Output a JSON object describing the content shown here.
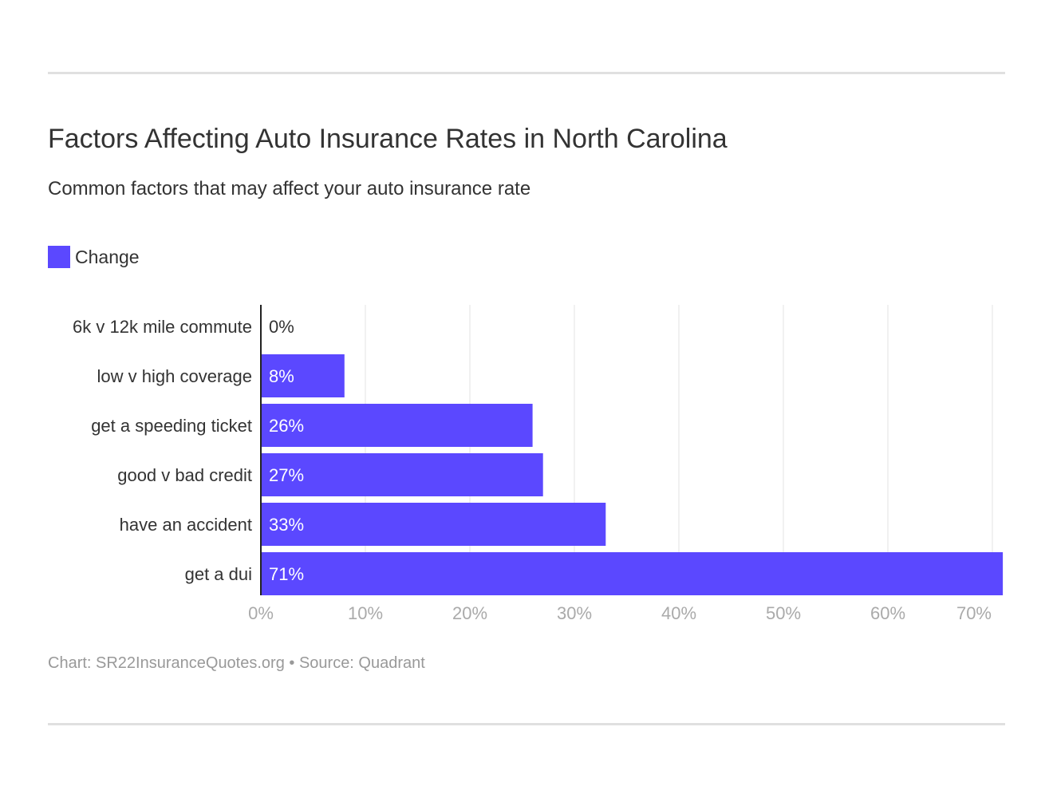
{
  "title": "Factors Affecting Auto Insurance Rates in North Carolina",
  "subtitle": "Common factors that may affect your auto insurance rate",
  "footer": "Chart: SR22InsuranceQuotes.org • Source: Quadrant",
  "chart_data": {
    "type": "bar",
    "orientation": "horizontal",
    "categories": [
      "6k v 12k mile commute",
      "low v high coverage",
      "get a speeding ticket",
      "good v bad credit",
      "have an accident",
      "get a dui"
    ],
    "series": [
      {
        "name": "Change",
        "values": [
          0,
          8,
          26,
          27,
          33,
          71
        ],
        "color": "#5b48ff"
      }
    ],
    "data_labels": [
      "0%",
      "8%",
      "26%",
      "27%",
      "33%",
      "71%"
    ],
    "xlim": [
      0,
      71
    ],
    "xticks": [
      0,
      10,
      20,
      30,
      40,
      50,
      60,
      70
    ],
    "xtick_labels": [
      "0%",
      "10%",
      "20%",
      "30%",
      "40%",
      "50%",
      "60%",
      "70%"
    ],
    "grid": true,
    "legend": "top-left"
  }
}
